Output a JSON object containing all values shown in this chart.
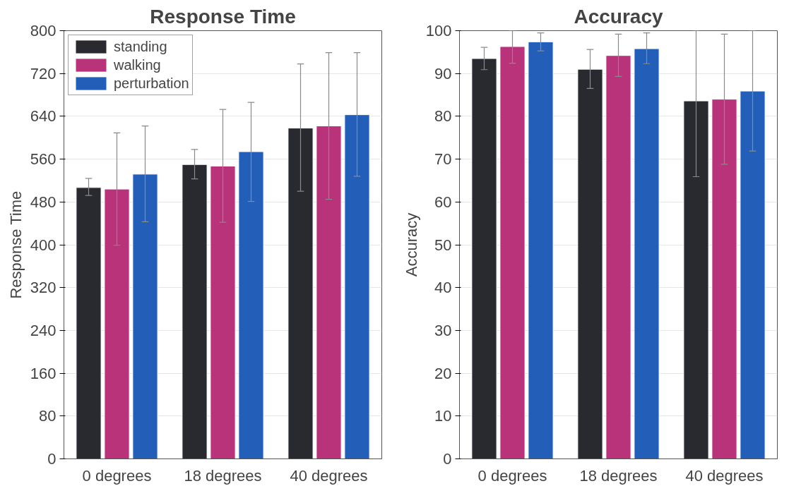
{
  "chart_data": [
    {
      "type": "bar",
      "title": "Response Time",
      "ylabel": "Response Time",
      "categories": [
        "0 degrees",
        "18 degrees",
        "40 degrees"
      ],
      "ylim": [
        0,
        800
      ],
      "yticks": [
        0,
        80,
        160,
        240,
        320,
        400,
        480,
        560,
        640,
        720,
        800
      ],
      "grid": "y",
      "legend": "top left",
      "series": [
        {
          "name": "standing",
          "color": "#292a30",
          "values": [
            507,
            550,
            618
          ],
          "errors": [
            [
              492,
              524
            ],
            [
              523,
              578
            ],
            [
              500,
              738
            ]
          ]
        },
        {
          "name": "walking",
          "color": "#b8337a",
          "values": [
            504,
            547,
            622
          ],
          "errors": [
            [
              399,
              609
            ],
            [
              442,
              653
            ],
            [
              485,
              759
            ]
          ]
        },
        {
          "name": "perturbation",
          "color": "#235fb9",
          "values": [
            532,
            574,
            643
          ],
          "errors": [
            [
              443,
              622
            ],
            [
              481,
              666
            ],
            [
              528,
              759
            ]
          ]
        }
      ]
    },
    {
      "type": "bar",
      "title": "Accuracy",
      "ylabel": "Accuracy",
      "categories": [
        "0 degrees",
        "18 degrees",
        "40 degrees"
      ],
      "ylim": [
        0,
        100
      ],
      "yticks": [
        0,
        10,
        20,
        30,
        40,
        50,
        60,
        70,
        80,
        90,
        100
      ],
      "grid": "y",
      "series": [
        {
          "color": "#292a30",
          "values": [
            93.5,
            91.0,
            83.6
          ],
          "errors": [
            [
              90.9,
              96.1
            ],
            [
              86.5,
              95.6
            ],
            [
              65.9,
              100
            ]
          ]
        },
        {
          "color": "#b8337a",
          "values": [
            96.3,
            94.2,
            84.0
          ],
          "errors": [
            [
              92.4,
              100
            ],
            [
              89.3,
              99.2
            ],
            [
              68.8,
              99.2
            ]
          ]
        },
        {
          "color": "#235fb9",
          "values": [
            97.4,
            95.8,
            85.9
          ],
          "errors": [
            [
              95.3,
              99.5
            ],
            [
              92.3,
              99.5
            ],
            [
              71.9,
              100
            ]
          ]
        }
      ]
    }
  ]
}
